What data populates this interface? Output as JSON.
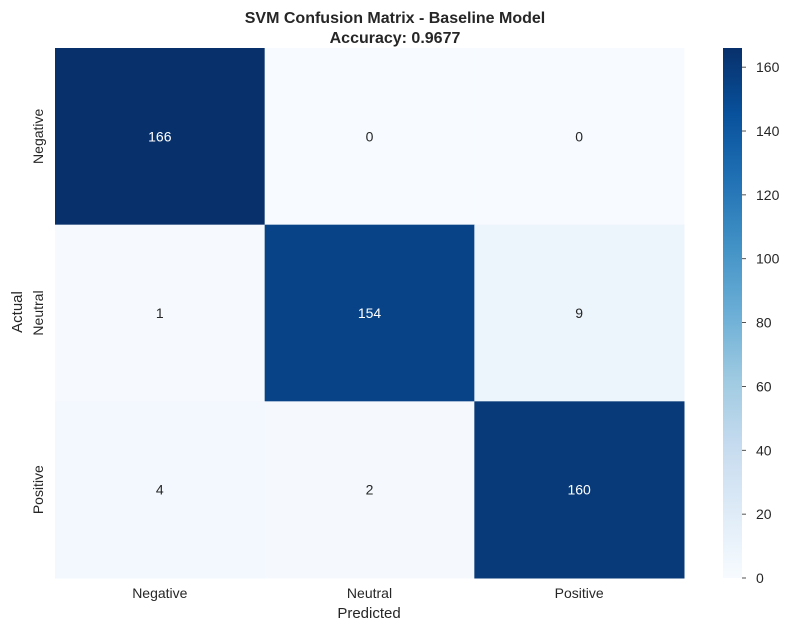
{
  "chart_data": {
    "type": "heatmap",
    "title": "SVM Confusion Matrix - Baseline Model",
    "subtitle": "Accuracy: 0.9677",
    "xlabel": "Predicted",
    "ylabel": "Actual",
    "x_categories": [
      "Negative",
      "Neutral",
      "Positive"
    ],
    "y_categories": [
      "Negative",
      "Neutral",
      "Positive"
    ],
    "values": [
      [
        166,
        0,
        0
      ],
      [
        1,
        154,
        9
      ],
      [
        4,
        2,
        160
      ]
    ],
    "colormap": "Blues",
    "value_range": [
      0,
      166
    ],
    "colorbar_ticks": [
      0,
      20,
      40,
      60,
      80,
      100,
      120,
      140,
      160
    ],
    "colorbar_position": "right",
    "grid": false
  }
}
